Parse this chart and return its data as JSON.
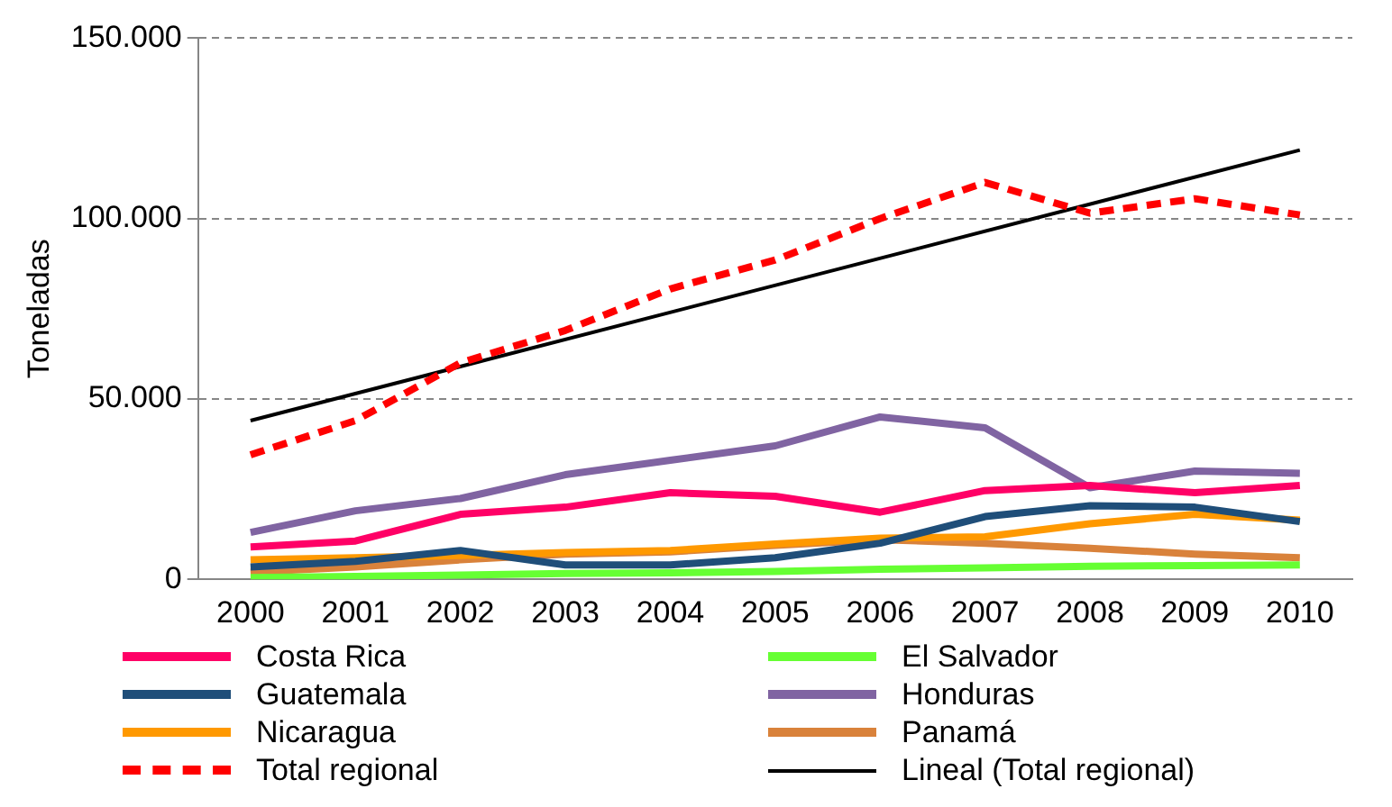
{
  "chart_data": {
    "type": "line",
    "ylabel": "Toneladas",
    "categories": [
      "2000",
      "2001",
      "2002",
      "2003",
      "2004",
      "2005",
      "2006",
      "2007",
      "2008",
      "2009",
      "2010"
    ],
    "ylim": [
      0,
      150000
    ],
    "yticks": [
      {
        "value": 0,
        "label": "0"
      },
      {
        "value": 50000,
        "label": "50.000"
      },
      {
        "value": 100000,
        "label": "100.000"
      },
      {
        "value": 150000,
        "label": "150.000"
      }
    ],
    "grid": "y",
    "legend": "bottom",
    "marker": "none",
    "series": [
      {
        "name": "Costa Rica",
        "color": "#ff0066",
        "values": [
          9000,
          10600,
          18000,
          20000,
          24000,
          23000,
          18600,
          24600,
          26000,
          24000,
          26000
        ]
      },
      {
        "name": "El Salvador",
        "color": "#66ff33",
        "values": [
          500,
          800,
          1200,
          1600,
          1800,
          2200,
          2800,
          3200,
          3600,
          3800,
          4000
        ]
      },
      {
        "name": "Guatemala",
        "color": "#1f4e79",
        "values": [
          3400,
          5000,
          8000,
          4000,
          4000,
          6000,
          10000,
          17400,
          20400,
          20000,
          16000
        ]
      },
      {
        "name": "Honduras",
        "color": "#8064a2",
        "values": [
          13000,
          19000,
          22400,
          29000,
          33000,
          37000,
          45000,
          42000,
          25400,
          30000,
          29400
        ]
      },
      {
        "name": "Nicaragua",
        "color": "#ff9900",
        "values": [
          5400,
          6000,
          6600,
          7400,
          8000,
          9800,
          11400,
          11800,
          15400,
          18000,
          16400
        ]
      },
      {
        "name": "Panamá",
        "color": "#d9823b",
        "values": [
          2000,
          3400,
          5400,
          7000,
          7600,
          9400,
          11000,
          10000,
          8600,
          7000,
          6000
        ]
      },
      {
        "name": "Total regional",
        "color": "#ff0000",
        "line_style": "dashed",
        "values": [
          34500,
          44000,
          60000,
          69000,
          80500,
          88500,
          100000,
          110000,
          101500,
          105500,
          101000
        ]
      },
      {
        "name": "Lineal (Total regional)",
        "color": "#000000",
        "line_style": "solid",
        "values": [
          44000,
          null,
          null,
          null,
          null,
          null,
          null,
          null,
          null,
          null,
          119000
        ]
      }
    ]
  }
}
